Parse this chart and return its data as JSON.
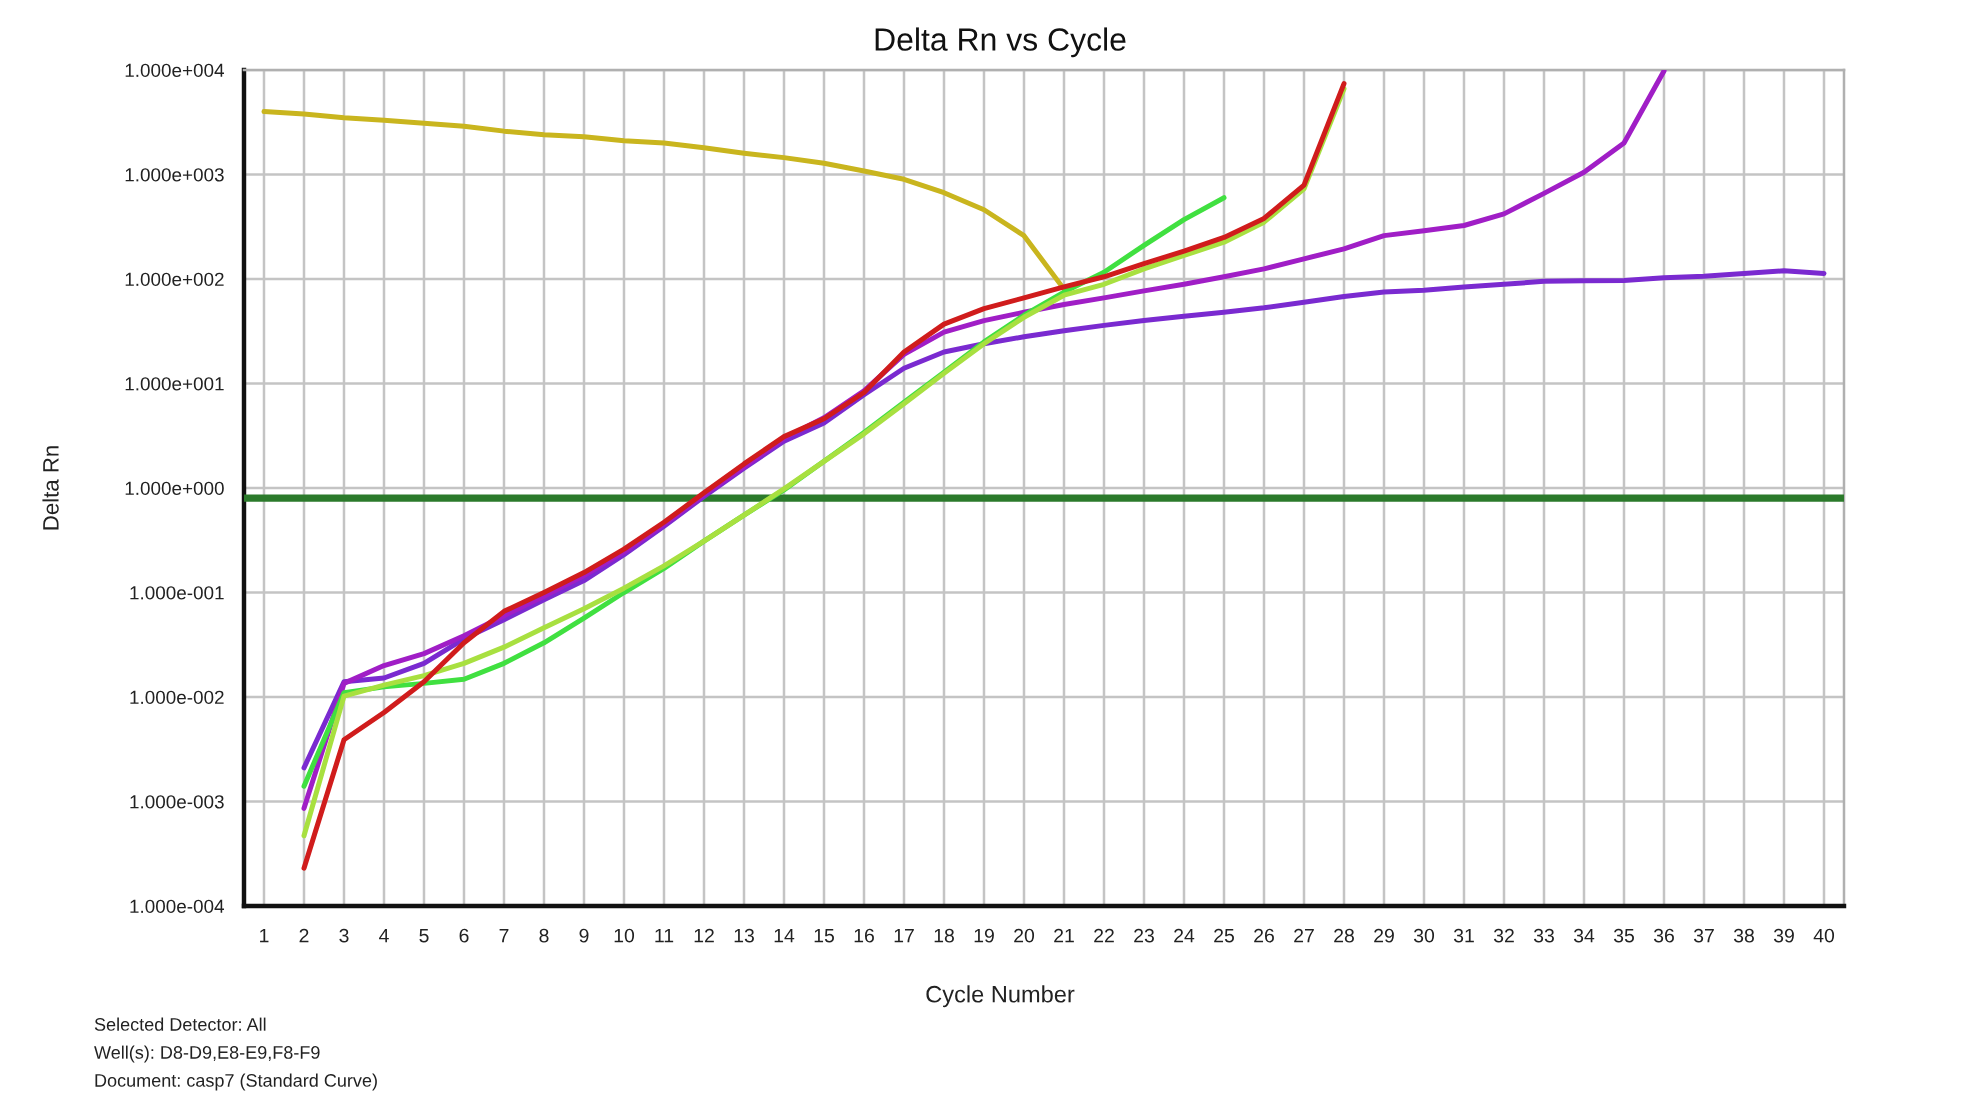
{
  "chart_data": {
    "type": "line",
    "title": "Delta Rn vs Cycle",
    "xlabel": "Cycle Number",
    "ylabel": "Delta Rn",
    "annotations": [
      "Selected Detector: All",
      "Well(s): D8-D9,E8-E9,F8-F9",
      "Document: casp7 (Standard Curve)"
    ],
    "x": [
      1,
      2,
      3,
      4,
      5,
      6,
      7,
      8,
      9,
      10,
      11,
      12,
      13,
      14,
      15,
      16,
      17,
      18,
      19,
      20,
      21,
      22,
      23,
      24,
      25,
      26,
      27,
      28,
      29,
      30,
      31,
      32,
      33,
      34,
      35,
      36,
      37,
      38,
      39,
      40
    ],
    "series": [
      {
        "color": "#c9b51e",
        "values": [
          4000,
          3800,
          3500,
          3300,
          3100,
          2900,
          2600,
          2400,
          2300,
          2100,
          2000,
          1800,
          1600,
          1450,
          1280,
          1080,
          900,
          670,
          460,
          260,
          80,
          null,
          null,
          null,
          null,
          null,
          null,
          null,
          null,
          null,
          null,
          null,
          null,
          null,
          null,
          null,
          null,
          null,
          null,
          null
        ]
      },
      {
        "color": "#7a2ad0",
        "values": [
          null,
          0.0021,
          0.014,
          0.0152,
          0.021,
          0.036,
          0.055,
          0.085,
          0.13,
          0.23,
          0.43,
          0.83,
          1.55,
          2.8,
          4.2,
          7.8,
          14,
          20,
          24,
          28,
          32,
          36,
          40,
          44,
          48,
          53,
          60,
          68,
          75,
          78,
          84,
          89,
          95,
          96,
          97,
          103,
          106,
          113,
          120,
          113
        ]
      },
      {
        "color": "#a01ec6",
        "values": [
          null,
          0.00086,
          0.0135,
          0.02,
          0.026,
          0.0385,
          0.06,
          0.092,
          0.145,
          0.245,
          0.45,
          0.86,
          1.6,
          3.0,
          4.7,
          8.5,
          19,
          31,
          40,
          48,
          57,
          66,
          77,
          89,
          105,
          125,
          156,
          194,
          260,
          290,
          325,
          420,
          660,
          1050,
          2000,
          9800,
          null,
          null,
          null,
          null
        ]
      },
      {
        "color": "#40e040",
        "values": [
          null,
          0.0014,
          0.011,
          0.0125,
          0.0135,
          0.0148,
          0.021,
          0.033,
          0.057,
          0.1,
          0.17,
          0.31,
          0.55,
          0.96,
          1.8,
          3.4,
          6.6,
          12.8,
          25,
          45,
          75,
          116,
          210,
          370,
          600,
          null,
          null,
          null,
          null,
          null,
          null,
          null,
          null,
          null,
          null,
          null,
          null,
          null,
          null,
          null
        ]
      },
      {
        "color": "#a8e040",
        "values": [
          null,
          0.00047,
          0.0102,
          0.013,
          0.016,
          0.021,
          0.03,
          0.046,
          0.07,
          0.11,
          0.18,
          0.31,
          0.55,
          0.98,
          1.8,
          3.3,
          6.4,
          12.5,
          24,
          43,
          70,
          89,
          125,
          168,
          225,
          350,
          730,
          6600,
          null,
          null,
          null,
          null,
          null,
          null,
          null,
          null,
          null,
          null,
          null,
          null
        ]
      },
      {
        "color": "#d01c1c",
        "values": [
          null,
          0.00023,
          0.0039,
          0.0071,
          0.014,
          0.033,
          0.066,
          0.1,
          0.155,
          0.26,
          0.47,
          0.9,
          1.7,
          3.1,
          4.6,
          8.2,
          20,
          37,
          52,
          66,
          84,
          105,
          140,
          185,
          250,
          380,
          790,
          7400,
          null,
          null,
          null,
          null,
          null,
          null,
          null,
          null,
          null,
          null,
          null,
          null
        ]
      }
    ],
    "ref_lines": [
      {
        "axis": "y",
        "value": 0.8,
        "color": "#2b7a2b"
      }
    ],
    "xlim": [
      0.5,
      40.5
    ],
    "xticks": [
      1,
      2,
      3,
      4,
      5,
      6,
      7,
      8,
      9,
      10,
      11,
      12,
      13,
      14,
      15,
      16,
      17,
      18,
      19,
      20,
      21,
      22,
      23,
      24,
      25,
      26,
      27,
      28,
      29,
      30,
      31,
      32,
      33,
      34,
      35,
      36,
      37,
      38,
      39,
      40
    ],
    "ylim": [
      0.0001,
      10000
    ],
    "yticks": [
      {
        "value": 0.0001,
        "label": "1.000e-004"
      },
      {
        "value": 0.001,
        "label": "1.000e-003"
      },
      {
        "value": 0.01,
        "label": "1.000e-002"
      },
      {
        "value": 0.1,
        "label": "1.000e-001"
      },
      {
        "value": 1,
        "label": "1.000e+000"
      },
      {
        "value": 10,
        "label": "1.000e+001"
      },
      {
        "value": 100,
        "label": "1.000e+002"
      },
      {
        "value": 1000,
        "label": "1.000e+003"
      },
      {
        "value": 10000,
        "label": "1.000e+004"
      }
    ],
    "log": "y",
    "grid": true,
    "line_style": "solid",
    "marker": "none"
  }
}
